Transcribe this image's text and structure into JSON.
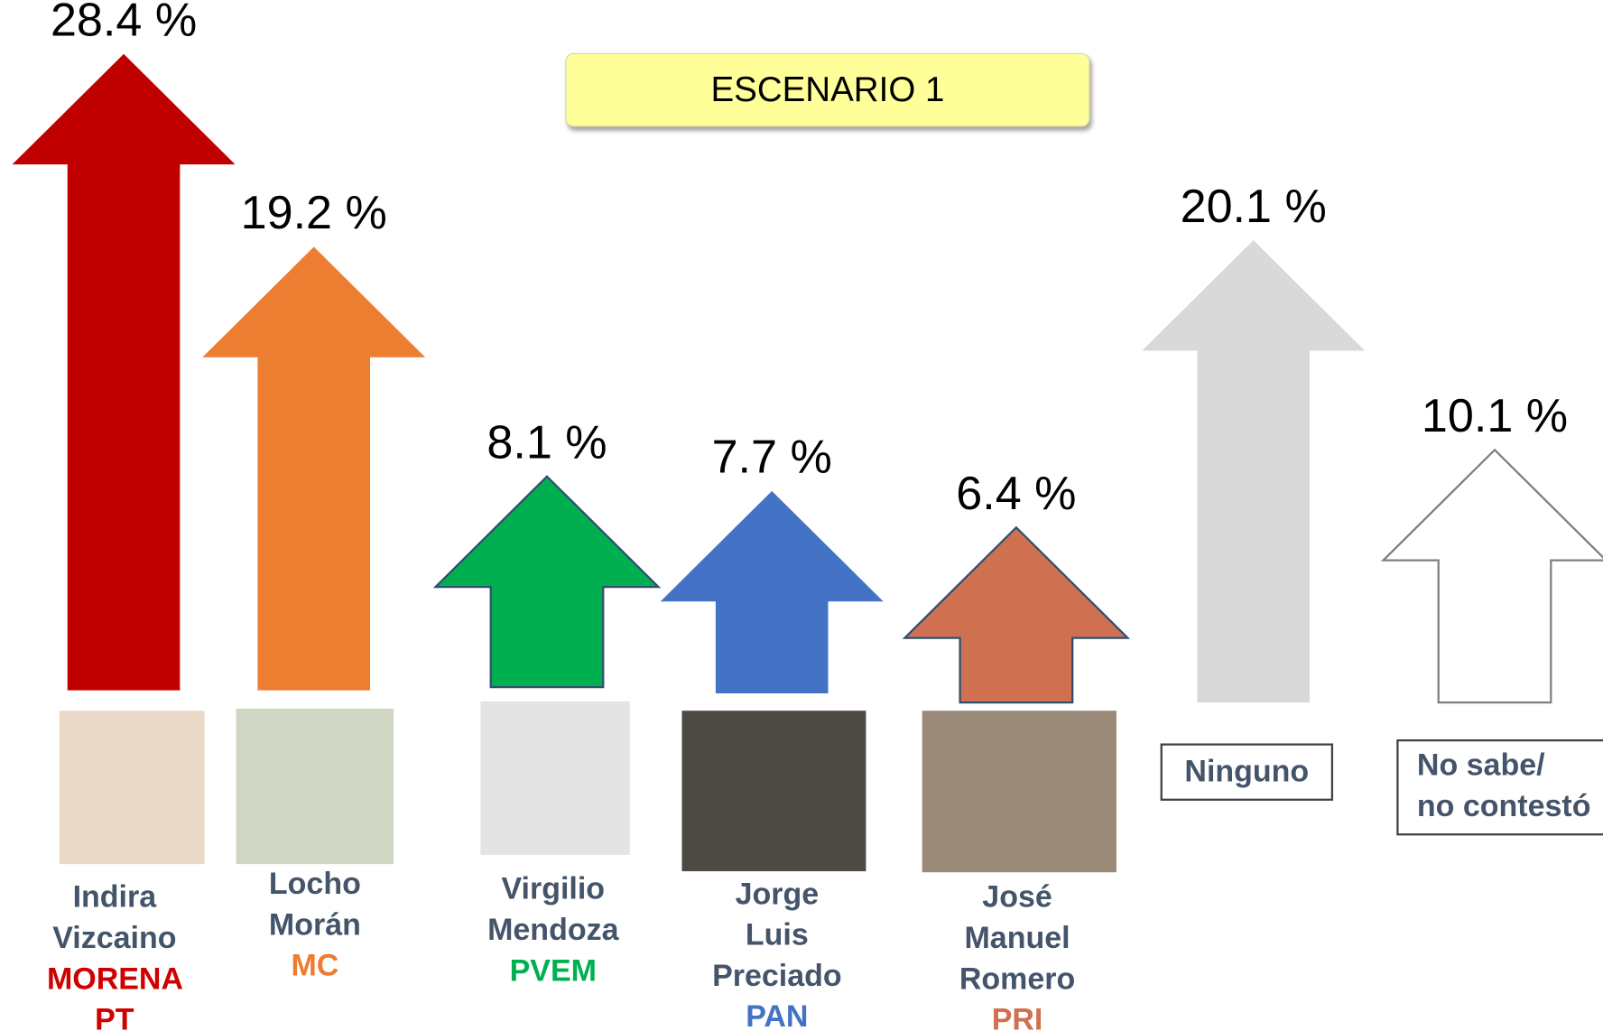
{
  "chart_data": {
    "type": "arrow",
    "title": "ESCENARIO 1",
    "categories": [
      "Indira Vizcaino",
      "Locho Morán",
      "Virgilio Mendoza",
      "Jorge Luis Preciado",
      "José Manuel Romero",
      "Ninguno",
      "No sabe/\nno contestó"
    ],
    "parties": [
      "MORENA PT",
      "MC",
      "PVEM",
      "PAN",
      "PRI",
      null,
      null
    ],
    "party_colors": [
      "#d00000",
      "#ed7d31",
      "#00b050",
      "#4472c4",
      "#d07050",
      null,
      null
    ],
    "values": [
      28.4,
      19.2,
      8.1,
      7.7,
      6.4,
      20.1,
      10.1
    ],
    "value_labels": [
      "28.4 %",
      "19.2 %",
      "8.1 %",
      "7.7 %",
      "6.4 %",
      "20.1 %",
      "10.1 %"
    ],
    "colors": [
      "#c00000",
      "#ed7d31",
      "#00b050",
      "#4472c4",
      "#cf7151",
      "#d9d9d9",
      "#ffffff"
    ]
  }
}
